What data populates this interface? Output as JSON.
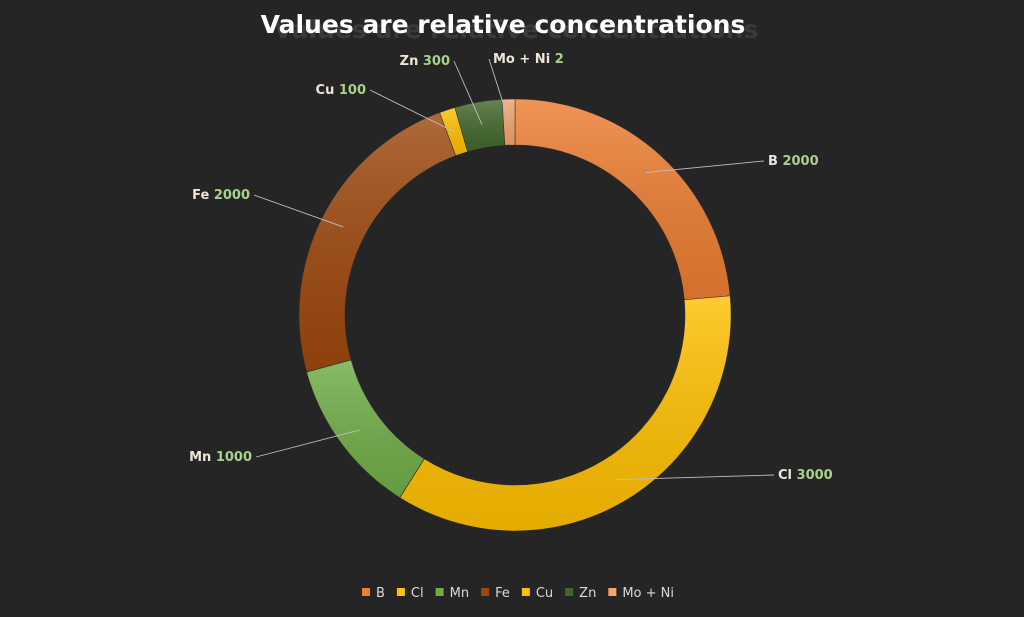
{
  "chart_data": {
    "type": "pie",
    "style": "doughnut",
    "title": "Values are relative concentrations",
    "series": [
      {
        "name": "",
        "categories": [
          "B",
          "Cl",
          "Mn",
          "Fe",
          "Cu",
          "Zn",
          "Mo + Ni"
        ],
        "values": [
          2000,
          3000,
          1000,
          2000,
          100,
          300,
          2
        ],
        "colors": [
          "#ED7D31",
          "#FFC000",
          "#70AD47",
          "#9E480E",
          "#FFC000",
          "#43682B",
          "#F4A46C"
        ]
      }
    ],
    "data_labels": [
      "name",
      "value"
    ],
    "legend": "bottom"
  }
}
